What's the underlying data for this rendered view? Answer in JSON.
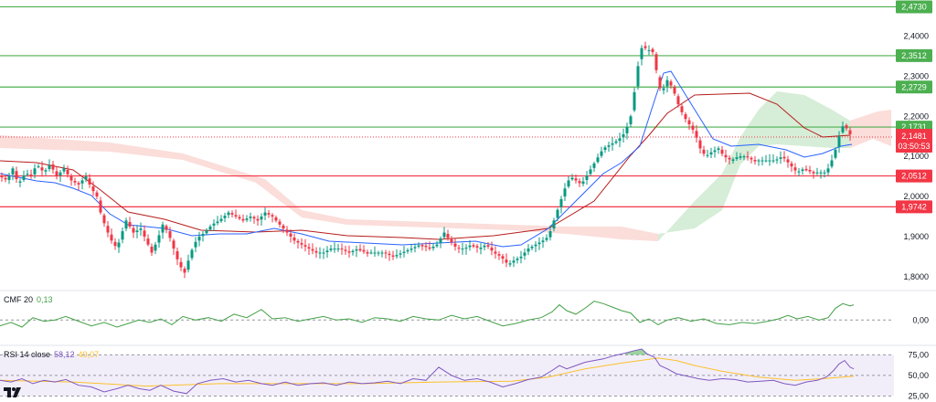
{
  "colors": {
    "candle_up": "#089981",
    "candle_down": "#f23645",
    "support_line": "#4caf50",
    "resistance_line": "#f23645",
    "tenkan": "#2962ff",
    "kijun": "#b71c1c",
    "cloud_bull": "#a5d6a7",
    "cloud_bear": "#f7b3ad",
    "cmf": "#43a047",
    "rsi": "#7e57c2",
    "rsi_ma": "#fbc02d",
    "current_price": "#f23645"
  },
  "price_levels": [
    {
      "label": "2,4730",
      "value": 2.473,
      "kind": "support"
    },
    {
      "label": "2,3512",
      "value": 2.3512,
      "kind": "support"
    },
    {
      "label": "2,2729",
      "value": 2.2729,
      "kind": "support"
    },
    {
      "label": "2,1731",
      "value": 2.1731,
      "kind": "support"
    },
    {
      "label": "2,0512",
      "value": 2.0512,
      "kind": "resistance"
    },
    {
      "label": "1,9742",
      "value": 1.9742,
      "kind": "resistance"
    }
  ],
  "current_price": {
    "label": "2,1481",
    "value": 2.1481,
    "countdown": "03:50:53"
  },
  "cmf": {
    "name": "CMF 20",
    "value_label": "0,13"
  },
  "rsi": {
    "name": "RSI 14 close",
    "value_label": "58,12",
    "ma_label": "49,07"
  },
  "chart_data": [
    {
      "type": "candlestick",
      "title": "",
      "y_ticks": [
        "2,4000",
        "2,3000",
        "2,2000",
        "2,1000",
        "2,0000",
        "1,9000",
        "1,8000"
      ],
      "ylim": [
        1.77,
        2.49
      ],
      "grid": false,
      "path": [
        [
          0,
          2.05
        ],
        [
          8,
          2.04
        ],
        [
          14,
          2.07
        ],
        [
          20,
          2.03
        ],
        [
          28,
          2.06
        ],
        [
          34,
          2.05
        ],
        [
          40,
          2.08
        ],
        [
          48,
          2.06
        ],
        [
          55,
          2.08
        ],
        [
          62,
          2.05
        ],
        [
          70,
          2.07
        ],
        [
          78,
          2.04
        ],
        [
          86,
          2.03
        ],
        [
          94,
          2.05
        ],
        [
          100,
          2.02
        ],
        [
          106,
          2.0
        ],
        [
          110,
          1.96
        ],
        [
          116,
          1.92
        ],
        [
          122,
          1.89
        ],
        [
          128,
          1.87
        ],
        [
          132,
          1.9
        ],
        [
          138,
          1.94
        ],
        [
          146,
          1.91
        ],
        [
          154,
          1.92
        ],
        [
          160,
          1.89
        ],
        [
          166,
          1.86
        ],
        [
          172,
          1.89
        ],
        [
          178,
          1.93
        ],
        [
          184,
          1.91
        ],
        [
          190,
          1.87
        ],
        [
          196,
          1.83
        ],
        [
          202,
          1.81
        ],
        [
          206,
          1.84
        ],
        [
          212,
          1.88
        ],
        [
          218,
          1.9
        ],
        [
          224,
          1.91
        ],
        [
          232,
          1.93
        ],
        [
          240,
          1.94
        ],
        [
          250,
          1.96
        ],
        [
          258,
          1.95
        ],
        [
          266,
          1.94
        ],
        [
          274,
          1.95
        ],
        [
          282,
          1.94
        ],
        [
          290,
          1.96
        ],
        [
          298,
          1.95
        ],
        [
          306,
          1.93
        ],
        [
          314,
          1.91
        ],
        [
          322,
          1.89
        ],
        [
          330,
          1.88
        ],
        [
          338,
          1.87
        ],
        [
          346,
          1.86
        ],
        [
          354,
          1.86
        ],
        [
          362,
          1.87
        ],
        [
          372,
          1.87
        ],
        [
          382,
          1.86
        ],
        [
          392,
          1.87
        ],
        [
          400,
          1.86
        ],
        [
          410,
          1.86
        ],
        [
          420,
          1.86
        ],
        [
          430,
          1.85
        ],
        [
          440,
          1.86
        ],
        [
          450,
          1.87
        ],
        [
          460,
          1.88
        ],
        [
          470,
          1.87
        ],
        [
          478,
          1.88
        ],
        [
          486,
          1.91
        ],
        [
          492,
          1.89
        ],
        [
          500,
          1.87
        ],
        [
          508,
          1.87
        ],
        [
          516,
          1.88
        ],
        [
          524,
          1.87
        ],
        [
          532,
          1.88
        ],
        [
          540,
          1.86
        ],
        [
          548,
          1.85
        ],
        [
          556,
          1.83
        ],
        [
          562,
          1.84
        ],
        [
          570,
          1.85
        ],
        [
          578,
          1.87
        ],
        [
          586,
          1.88
        ],
        [
          594,
          1.89
        ],
        [
          600,
          1.9
        ],
        [
          606,
          1.94
        ],
        [
          612,
          1.98
        ],
        [
          618,
          2.02
        ],
        [
          624,
          2.05
        ],
        [
          630,
          2.04
        ],
        [
          636,
          2.03
        ],
        [
          644,
          2.06
        ],
        [
          652,
          2.09
        ],
        [
          660,
          2.12
        ],
        [
          668,
          2.13
        ],
        [
          676,
          2.14
        ],
        [
          684,
          2.16
        ],
        [
          690,
          2.2
        ],
        [
          696,
          2.29
        ],
        [
          700,
          2.36
        ],
        [
          704,
          2.38
        ],
        [
          708,
          2.36
        ],
        [
          712,
          2.37
        ],
        [
          716,
          2.35
        ],
        [
          720,
          2.28
        ],
        [
          724,
          2.26
        ],
        [
          730,
          2.29
        ],
        [
          736,
          2.27
        ],
        [
          742,
          2.23
        ],
        [
          748,
          2.2
        ],
        [
          754,
          2.18
        ],
        [
          760,
          2.16
        ],
        [
          766,
          2.12
        ],
        [
          772,
          2.1
        ],
        [
          778,
          2.11
        ],
        [
          786,
          2.12
        ],
        [
          792,
          2.1
        ],
        [
          800,
          2.09
        ],
        [
          808,
          2.1
        ],
        [
          816,
          2.1
        ],
        [
          824,
          2.09
        ],
        [
          832,
          2.09
        ],
        [
          840,
          2.09
        ],
        [
          848,
          2.09
        ],
        [
          856,
          2.1
        ],
        [
          864,
          2.08
        ],
        [
          872,
          2.06
        ],
        [
          880,
          2.07
        ],
        [
          888,
          2.06
        ],
        [
          896,
          2.06
        ],
        [
          904,
          2.06
        ],
        [
          910,
          2.09
        ],
        [
          916,
          2.13
        ],
        [
          920,
          2.17
        ],
        [
          924,
          2.18
        ],
        [
          928,
          2.16
        ],
        [
          932,
          2.15
        ]
      ]
    },
    {
      "type": "line",
      "title": "CMF 20",
      "y_ticks": [
        "0,00"
      ],
      "ylim": [
        -0.2,
        0.22
      ],
      "zero_line": 0,
      "path": [
        [
          0,
          -0.05
        ],
        [
          12,
          -0.02
        ],
        [
          24,
          -0.06
        ],
        [
          36,
          0.02
        ],
        [
          48,
          -0.01
        ],
        [
          60,
          0.0
        ],
        [
          72,
          0.03
        ],
        [
          86,
          -0.01
        ],
        [
          100,
          -0.05
        ],
        [
          114,
          -0.02
        ],
        [
          128,
          -0.06
        ],
        [
          140,
          -0.03
        ],
        [
          152,
          0.0
        ],
        [
          164,
          -0.02
        ],
        [
          176,
          0.01
        ],
        [
          188,
          -0.04
        ],
        [
          200,
          0.03
        ],
        [
          214,
          0.0
        ],
        [
          228,
          0.02
        ],
        [
          242,
          -0.01
        ],
        [
          256,
          0.05
        ],
        [
          270,
          0.02
        ],
        [
          286,
          0.09
        ],
        [
          298,
          0.01
        ],
        [
          312,
          0.02
        ],
        [
          326,
          -0.01
        ],
        [
          340,
          0.01
        ],
        [
          354,
          0.03
        ],
        [
          368,
          0.0
        ],
        [
          382,
          0.01
        ],
        [
          396,
          -0.02
        ],
        [
          410,
          0.02
        ],
        [
          424,
          0.01
        ],
        [
          438,
          -0.01
        ],
        [
          452,
          0.03
        ],
        [
          466,
          0.01
        ],
        [
          480,
          0.0
        ],
        [
          494,
          0.04
        ],
        [
          508,
          0.01
        ],
        [
          522,
          0.03
        ],
        [
          536,
          -0.01
        ],
        [
          550,
          -0.05
        ],
        [
          564,
          -0.03
        ],
        [
          578,
          0.0
        ],
        [
          592,
          0.02
        ],
        [
          604,
          0.07
        ],
        [
          612,
          0.13
        ],
        [
          620,
          0.08
        ],
        [
          630,
          0.05
        ],
        [
          640,
          0.1
        ],
        [
          650,
          0.16
        ],
        [
          660,
          0.14
        ],
        [
          670,
          0.11
        ],
        [
          680,
          0.08
        ],
        [
          690,
          0.06
        ],
        [
          700,
          -0.02
        ],
        [
          710,
          0.01
        ],
        [
          720,
          -0.04
        ],
        [
          730,
          0.0
        ],
        [
          742,
          0.02
        ],
        [
          756,
          -0.01
        ],
        [
          770,
          0.01
        ],
        [
          784,
          -0.03
        ],
        [
          798,
          -0.04
        ],
        [
          812,
          -0.02
        ],
        [
          826,
          -0.03
        ],
        [
          840,
          -0.01
        ],
        [
          852,
          0.01
        ],
        [
          862,
          0.04
        ],
        [
          872,
          0.01
        ],
        [
          884,
          0.03
        ],
        [
          896,
          0.0
        ],
        [
          906,
          0.02
        ],
        [
          914,
          0.1
        ],
        [
          922,
          0.14
        ],
        [
          930,
          0.12
        ],
        [
          934,
          0.13
        ]
      ]
    },
    {
      "type": "line",
      "title": "RSI 14 close",
      "y_ticks": [
        "75,00",
        "50,00",
        "25,00"
      ],
      "ylim": [
        20,
        82
      ],
      "path": [
        [
          0,
          44
        ],
        [
          12,
          42
        ],
        [
          24,
          46
        ],
        [
          36,
          40
        ],
        [
          48,
          44
        ],
        [
          60,
          42
        ],
        [
          72,
          45
        ],
        [
          86,
          38
        ],
        [
          100,
          36
        ],
        [
          114,
          30
        ],
        [
          128,
          34
        ],
        [
          140,
          38
        ],
        [
          152,
          34
        ],
        [
          164,
          32
        ],
        [
          176,
          38
        ],
        [
          190,
          31
        ],
        [
          204,
          28
        ],
        [
          216,
          40
        ],
        [
          230,
          44
        ],
        [
          244,
          46
        ],
        [
          258,
          42
        ],
        [
          272,
          44
        ],
        [
          286,
          40
        ],
        [
          298,
          38
        ],
        [
          312,
          42
        ],
        [
          326,
          38
        ],
        [
          340,
          40
        ],
        [
          354,
          41
        ],
        [
          368,
          38
        ],
        [
          382,
          42
        ],
        [
          396,
          40
        ],
        [
          410,
          41
        ],
        [
          424,
          43
        ],
        [
          438,
          40
        ],
        [
          452,
          46
        ],
        [
          466,
          44
        ],
        [
          480,
          60
        ],
        [
          494,
          50
        ],
        [
          508,
          44
        ],
        [
          522,
          46
        ],
        [
          536,
          42
        ],
        [
          550,
          36
        ],
        [
          564,
          40
        ],
        [
          578,
          45
        ],
        [
          592,
          48
        ],
        [
          604,
          56
        ],
        [
          612,
          62
        ],
        [
          620,
          58
        ],
        [
          630,
          62
        ],
        [
          640,
          66
        ],
        [
          650,
          68
        ],
        [
          660,
          70
        ],
        [
          672,
          74
        ],
        [
          684,
          77
        ],
        [
          694,
          80
        ],
        [
          702,
          82
        ],
        [
          708,
          76
        ],
        [
          716,
          72
        ],
        [
          722,
          62
        ],
        [
          730,
          58
        ],
        [
          740,
          52
        ],
        [
          752,
          49
        ],
        [
          764,
          46
        ],
        [
          776,
          44
        ],
        [
          790,
          46
        ],
        [
          804,
          45
        ],
        [
          818,
          42
        ],
        [
          832,
          43
        ],
        [
          846,
          44
        ],
        [
          858,
          40
        ],
        [
          870,
          38
        ],
        [
          882,
          42
        ],
        [
          894,
          44
        ],
        [
          904,
          48
        ],
        [
          912,
          56
        ],
        [
          918,
          64
        ],
        [
          924,
          68
        ],
        [
          930,
          60
        ],
        [
          934,
          58
        ]
      ],
      "ma_path": [
        [
          0,
          44
        ],
        [
          80,
          42
        ],
        [
          160,
          37
        ],
        [
          240,
          40
        ],
        [
          320,
          40
        ],
        [
          400,
          40
        ],
        [
          480,
          42
        ],
        [
          560,
          43
        ],
        [
          600,
          48
        ],
        [
          640,
          58
        ],
        [
          680,
          65
        ],
        [
          720,
          71
        ],
        [
          740,
          68
        ],
        [
          760,
          62
        ],
        [
          790,
          55
        ],
        [
          830,
          48
        ],
        [
          870,
          44
        ],
        [
          900,
          46
        ],
        [
          934,
          49
        ]
      ]
    }
  ]
}
